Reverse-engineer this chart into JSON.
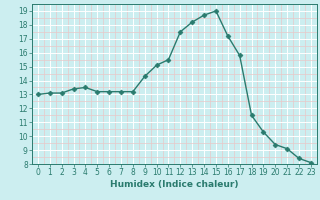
{
  "x": [
    0,
    1,
    2,
    3,
    4,
    5,
    6,
    7,
    8,
    9,
    10,
    11,
    12,
    13,
    14,
    15,
    16,
    17,
    18,
    19,
    20,
    21,
    22,
    23
  ],
  "y": [
    13.0,
    13.1,
    13.1,
    13.4,
    13.5,
    13.2,
    13.2,
    13.2,
    13.2,
    14.3,
    15.1,
    15.5,
    17.5,
    18.2,
    18.7,
    19.0,
    17.2,
    15.8,
    11.5,
    10.3,
    9.4,
    9.1,
    8.4,
    8.1
  ],
  "line_color": "#2a7b6e",
  "marker": "D",
  "marker_size": 2.5,
  "bg_color": "#cceef0",
  "grid_color_major": "#ffffff",
  "grid_color_minor": "#e8c8c8",
  "xlabel": "Humidex (Indice chaleur)",
  "ylim": [
    8,
    19.5
  ],
  "xlim": [
    -0.5,
    23.5
  ],
  "yticks": [
    8,
    9,
    10,
    11,
    12,
    13,
    14,
    15,
    16,
    17,
    18,
    19
  ],
  "xticks": [
    0,
    1,
    2,
    3,
    4,
    5,
    6,
    7,
    8,
    9,
    10,
    11,
    12,
    13,
    14,
    15,
    16,
    17,
    18,
    19,
    20,
    21,
    22,
    23
  ],
  "tick_fontsize": 5.5,
  "label_fontsize": 6.5,
  "line_width": 1.0
}
